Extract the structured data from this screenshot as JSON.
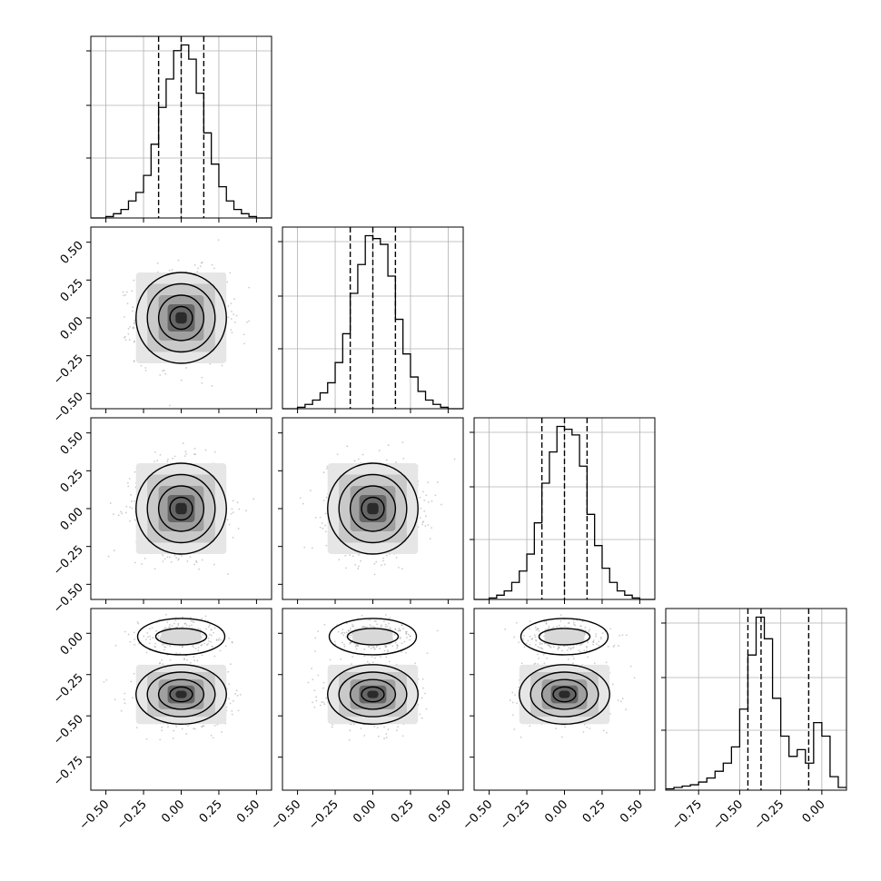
{
  "chart_data": {
    "type": "corner",
    "parameters": 4,
    "styles": {
      "line_color": "#000000",
      "grid_color": "#b0b0b0",
      "scatter_color": "#9a9a9a",
      "quantile_line_style": "dashed"
    },
    "axes": {
      "p1": {
        "range": [
          -0.6,
          0.6
        ],
        "ticks": [
          -0.5,
          -0.25,
          0.0,
          0.25,
          0.5
        ],
        "tick_labels": [
          "−0.50",
          "−0.25",
          "0.00",
          "0.25",
          "0.50"
        ]
      },
      "p2": {
        "range": [
          -0.6,
          0.6
        ],
        "ticks": [
          -0.5,
          -0.25,
          0.0,
          0.25,
          0.5
        ],
        "tick_labels": [
          "−0.50",
          "−0.25",
          "0.00",
          "0.25",
          "0.50"
        ]
      },
      "p3": {
        "range": [
          -0.6,
          0.6
        ],
        "ticks": [
          -0.5,
          -0.25,
          0.0,
          0.25,
          0.5
        ],
        "tick_labels": [
          "−0.50",
          "−0.25",
          "0.00",
          "0.25",
          "0.50"
        ]
      },
      "p4": {
        "range": [
          -0.95,
          0.15
        ],
        "ticks": [
          -0.75,
          -0.5,
          -0.25,
          0.0
        ],
        "tick_labels": [
          "−0.75",
          "−0.50",
          "−0.25",
          "0.00"
        ]
      }
    },
    "histograms": [
      {
        "param": "p1",
        "quantiles": [
          -0.15,
          0.0,
          0.15
        ],
        "bins": [
          -0.6,
          -0.55,
          -0.5,
          -0.45,
          -0.4,
          -0.35,
          -0.3,
          -0.25,
          -0.2,
          -0.15,
          -0.1,
          -0.05,
          0.0,
          0.05,
          0.1,
          0.15,
          0.2,
          0.25,
          0.3,
          0.35,
          0.4,
          0.45,
          0.5,
          0.55,
          0.6
        ],
        "counts": [
          0,
          0,
          1,
          3,
          6,
          12,
          18,
          30,
          52,
          78,
          98,
          118,
          122,
          112,
          88,
          60,
          38,
          22,
          12,
          6,
          3,
          1,
          0,
          0
        ]
      },
      {
        "param": "p2",
        "quantiles": [
          -0.15,
          0.0,
          0.15
        ],
        "bins": [
          -0.6,
          -0.55,
          -0.5,
          -0.45,
          -0.4,
          -0.35,
          -0.3,
          -0.25,
          -0.2,
          -0.15,
          -0.1,
          -0.05,
          0.0,
          0.05,
          0.1,
          0.15,
          0.2,
          0.25,
          0.3,
          0.35,
          0.4,
          0.45,
          0.5,
          0.55,
          0.6
        ],
        "counts": [
          0,
          0,
          1,
          3,
          6,
          11,
          18,
          32,
          52,
          80,
          100,
          120,
          118,
          114,
          92,
          62,
          38,
          22,
          12,
          6,
          3,
          1,
          0,
          0
        ]
      },
      {
        "param": "p3",
        "quantiles": [
          -0.15,
          0.0,
          0.15
        ],
        "bins": [
          -0.6,
          -0.55,
          -0.5,
          -0.45,
          -0.4,
          -0.35,
          -0.3,
          -0.25,
          -0.2,
          -0.15,
          -0.1,
          -0.05,
          0.0,
          0.05,
          0.1,
          0.15,
          0.2,
          0.25,
          0.3,
          0.35,
          0.4,
          0.45,
          0.5,
          0.55,
          0.6
        ],
        "counts": [
          0,
          0,
          1,
          3,
          6,
          12,
          20,
          32,
          54,
          82,
          104,
          122,
          120,
          116,
          94,
          60,
          38,
          22,
          12,
          6,
          3,
          1,
          0,
          0
        ]
      },
      {
        "param": "p4",
        "quantiles": [
          -0.45,
          -0.37,
          -0.08
        ],
        "bins": [
          -0.95,
          -0.9,
          -0.85,
          -0.8,
          -0.75,
          -0.7,
          -0.65,
          -0.6,
          -0.55,
          -0.5,
          -0.45,
          -0.4,
          -0.35,
          -0.3,
          -0.25,
          -0.2,
          -0.15,
          -0.1,
          -0.05,
          0.0,
          0.05,
          0.1,
          0.15
        ],
        "counts": [
          1,
          2,
          3,
          4,
          6,
          9,
          14,
          20,
          32,
          60,
          100,
          128,
          112,
          68,
          40,
          25,
          30,
          20,
          50,
          40,
          10,
          2
        ]
      }
    ],
    "pairs": [
      {
        "x": "p1",
        "y": "p2",
        "mode": [
          0.0,
          0.0
        ],
        "sigma": [
          0.15,
          0.15
        ]
      },
      {
        "x": "p1",
        "y": "p3",
        "mode": [
          0.0,
          0.0
        ],
        "sigma": [
          0.15,
          0.15
        ]
      },
      {
        "x": "p2",
        "y": "p3",
        "mode": [
          0.0,
          0.0
        ],
        "sigma": [
          0.15,
          0.15
        ]
      },
      {
        "x": "p1",
        "y": "p4",
        "mode": [
          0.0,
          -0.37
        ],
        "sigma": [
          0.15,
          0.09
        ],
        "secondary_mode": [
          0.0,
          -0.02
        ]
      },
      {
        "x": "p2",
        "y": "p4",
        "mode": [
          0.0,
          -0.37
        ],
        "sigma": [
          0.15,
          0.09
        ],
        "secondary_mode": [
          0.0,
          -0.02
        ]
      },
      {
        "x": "p3",
        "y": "p4",
        "mode": [
          0.0,
          -0.37
        ],
        "sigma": [
          0.15,
          0.09
        ],
        "secondary_mode": [
          0.0,
          -0.02
        ]
      }
    ]
  }
}
